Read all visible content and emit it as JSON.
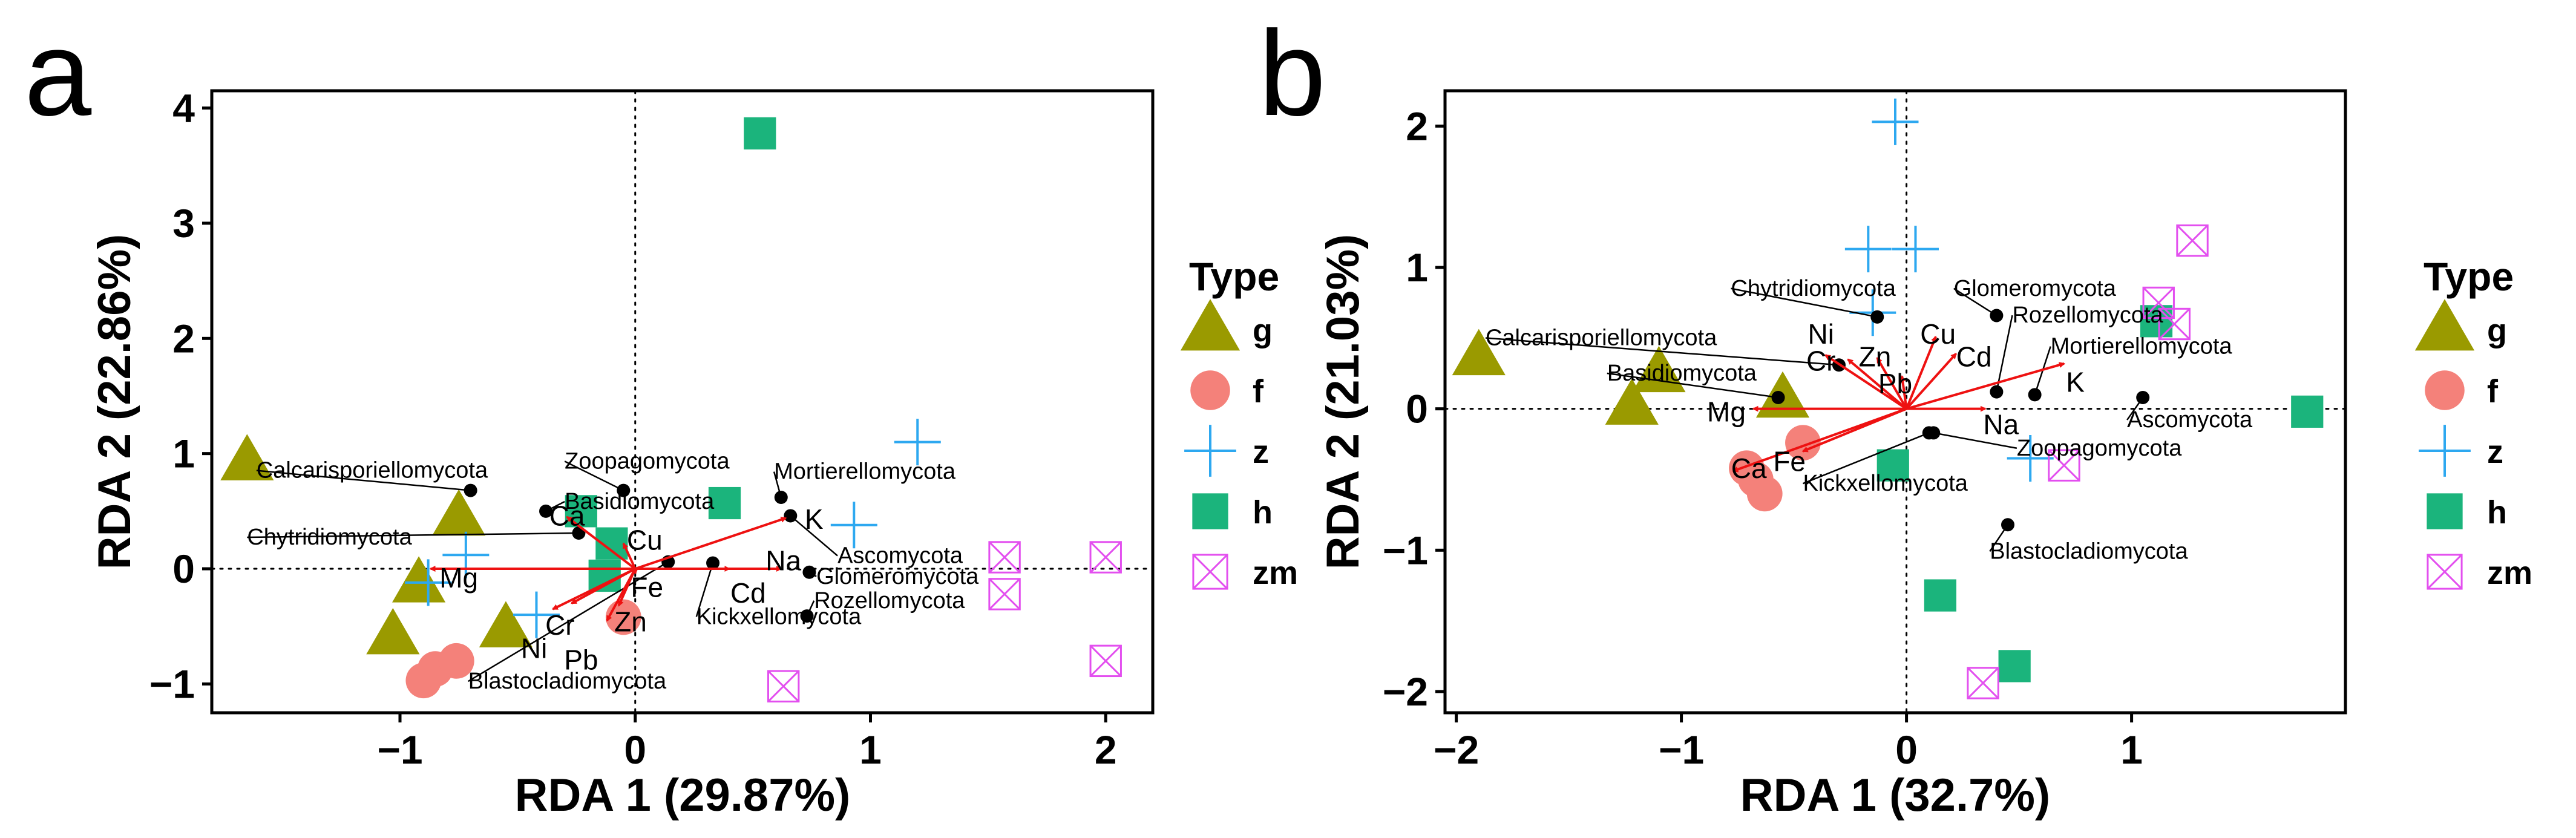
{
  "colors": {
    "g": "#9A9A00",
    "f": "#F4817A",
    "z": "#2DA8F0",
    "h": "#1BB47C",
    "zm": "#E34FEF",
    "arrow": "#EE1111",
    "species": "#000000"
  },
  "legend": {
    "title": "Type",
    "entries": [
      {
        "key": "g",
        "label": "g",
        "marker": "triangle-icon"
      },
      {
        "key": "f",
        "label": "f",
        "marker": "circle-icon"
      },
      {
        "key": "z",
        "label": "z",
        "marker": "plus-icon"
      },
      {
        "key": "h",
        "label": "h",
        "marker": "square-icon"
      },
      {
        "key": "zm",
        "label": "zm",
        "marker": "boxed-x-icon"
      }
    ]
  },
  "chart_data": [
    {
      "panel_label": "a",
      "type": "scatter",
      "title": "",
      "xlabel": "RDA 1 (29.87%)",
      "ylabel": "RDA 2 (22.86%)",
      "xlim": [
        -1.8,
        2.2
      ],
      "ylim": [
        -1.25,
        4.15
      ],
      "xticks": [
        -1,
        0,
        1,
        2
      ],
      "yticks": [
        -1,
        0,
        1,
        2,
        3,
        4
      ],
      "tick_labels_x": [
        "−1",
        "0",
        "1",
        "2"
      ],
      "tick_labels_y": [
        "−1",
        "0",
        "1",
        "2",
        "3",
        "4"
      ],
      "samples": [
        {
          "type": "g",
          "x": -1.65,
          "y": 0.93
        },
        {
          "type": "g",
          "x": -0.75,
          "y": 0.45
        },
        {
          "type": "g",
          "x": -0.92,
          "y": -0.13
        },
        {
          "type": "g",
          "x": -1.03,
          "y": -0.58
        },
        {
          "type": "g",
          "x": -0.55,
          "y": -0.52
        },
        {
          "type": "f",
          "x": -0.9,
          "y": -0.97
        },
        {
          "type": "f",
          "x": -0.85,
          "y": -0.87
        },
        {
          "type": "f",
          "x": -0.76,
          "y": -0.8
        },
        {
          "type": "f",
          "x": -0.05,
          "y": -0.42
        },
        {
          "type": "z",
          "x": -0.72,
          "y": 0.12
        },
        {
          "type": "z",
          "x": -0.88,
          "y": -0.12
        },
        {
          "type": "z",
          "x": -0.42,
          "y": -0.4
        },
        {
          "type": "z",
          "x": 1.2,
          "y": 1.1
        },
        {
          "type": "z",
          "x": 0.93,
          "y": 0.38
        },
        {
          "type": "h",
          "x": 0.53,
          "y": 3.78
        },
        {
          "type": "h",
          "x": -0.23,
          "y": 0.5
        },
        {
          "type": "h",
          "x": -0.1,
          "y": 0.22
        },
        {
          "type": "h",
          "x": -0.13,
          "y": -0.06
        },
        {
          "type": "h",
          "x": 0.38,
          "y": 0.57
        },
        {
          "type": "zm",
          "x": 1.57,
          "y": 0.1
        },
        {
          "type": "zm",
          "x": 1.57,
          "y": -0.22
        },
        {
          "type": "zm",
          "x": 2.0,
          "y": 0.1
        },
        {
          "type": "zm",
          "x": 2.0,
          "y": -0.8
        },
        {
          "type": "zm",
          "x": 0.63,
          "y": -1.02
        }
      ],
      "arrows": [
        {
          "label": "Ca",
          "x": -0.29,
          "y": 0.45,
          "lx": -0.29,
          "ly": 0.45
        },
        {
          "label": "Cu",
          "x": -0.05,
          "y": 0.22,
          "lx": 0.04,
          "ly": 0.24
        },
        {
          "label": "Mg",
          "x": -0.87,
          "y": 0.0,
          "lx": -0.75,
          "ly": -0.09
        },
        {
          "label": "Fe",
          "x": 0.0,
          "y": -0.04,
          "lx": 0.05,
          "ly": -0.17
        },
        {
          "label": "Cr",
          "x": -0.27,
          "y": -0.3,
          "lx": -0.32,
          "ly": -0.5
        },
        {
          "label": "Ni",
          "x": -0.35,
          "y": -0.35,
          "lx": -0.43,
          "ly": -0.7
        },
        {
          "label": "Zn",
          "x": -0.07,
          "y": -0.32,
          "lx": -0.02,
          "ly": -0.47
        },
        {
          "label": "Pb",
          "x": -0.12,
          "y": -0.45,
          "lx": -0.23,
          "ly": -0.8
        },
        {
          "label": "Cd",
          "x": 0.4,
          "y": 0.0,
          "lx": 0.48,
          "ly": -0.22
        },
        {
          "label": "Na",
          "x": 0.62,
          "y": 0.0,
          "lx": 0.63,
          "ly": 0.06
        },
        {
          "label": "K",
          "x": 0.64,
          "y": 0.44,
          "lx": 0.76,
          "ly": 0.42
        }
      ],
      "species": [
        {
          "name": "Calcarisporiellomycota",
          "x": -0.7,
          "y": 0.68,
          "lx": -1.61,
          "ly": 0.79,
          "anchor": "start"
        },
        {
          "name": "Zoopagomycota",
          "x": -0.05,
          "y": 0.68,
          "lx": -0.3,
          "ly": 0.87,
          "anchor": "start"
        },
        {
          "name": "Basidiomycota",
          "x": -0.38,
          "y": 0.5,
          "lx": -0.3,
          "ly": 0.52,
          "anchor": "start"
        },
        {
          "name": "Mortierellomycota",
          "x": 0.62,
          "y": 0.62,
          "lx": 0.59,
          "ly": 0.78,
          "anchor": "start"
        },
        {
          "name": "Chytridiomycota",
          "x": -0.24,
          "y": 0.31,
          "lx": -1.65,
          "ly": 0.21,
          "anchor": "start"
        },
        {
          "name": "Ascomycota",
          "x": 0.66,
          "y": 0.46,
          "lx": 0.86,
          "ly": 0.05,
          "anchor": "start"
        },
        {
          "name": "Glomeromycota",
          "x": 0.74,
          "y": -0.03,
          "lx": 0.77,
          "ly": -0.13,
          "anchor": "start"
        },
        {
          "name": "Rozellomycota",
          "x": 0.73,
          "y": -0.41,
          "lx": 0.76,
          "ly": -0.34,
          "anchor": "start"
        },
        {
          "name": "Kickxellomycota",
          "x": 0.33,
          "y": 0.05,
          "lx": 0.26,
          "ly": -0.48,
          "anchor": "start"
        },
        {
          "name": "Blastocladiomycota",
          "x": 0.14,
          "y": 0.06,
          "lx": -0.71,
          "ly": -1.04,
          "anchor": "start"
        }
      ]
    },
    {
      "panel_label": "b",
      "type": "scatter",
      "title": "",
      "xlabel": "RDA 1 (32.7%)",
      "ylabel": "RDA 2 (21.03%)",
      "xlim": [
        -2.05,
        1.95
      ],
      "ylim": [
        -2.15,
        2.25
      ],
      "xticks": [
        -2,
        -1,
        0,
        1
      ],
      "yticks": [
        -2,
        -1,
        0,
        1,
        2
      ],
      "tick_labels_x": [
        "−2",
        "−1",
        "0",
        "1"
      ],
      "tick_labels_y": [
        "−2",
        "−1",
        "0",
        "1",
        "2"
      ],
      "samples": [
        {
          "type": "g",
          "x": -1.9,
          "y": 0.37
        },
        {
          "type": "g",
          "x": -1.22,
          "y": 0.02
        },
        {
          "type": "g",
          "x": -1.1,
          "y": 0.25
        },
        {
          "type": "g",
          "x": -0.55,
          "y": 0.07
        },
        {
          "type": "f",
          "x": -0.71,
          "y": -0.42
        },
        {
          "type": "f",
          "x": -0.67,
          "y": -0.5
        },
        {
          "type": "f",
          "x": -0.63,
          "y": -0.6
        },
        {
          "type": "f",
          "x": -0.46,
          "y": -0.24
        },
        {
          "type": "z",
          "x": -0.05,
          "y": 2.03
        },
        {
          "type": "z",
          "x": -0.17,
          "y": 1.13
        },
        {
          "type": "z",
          "x": 0.04,
          "y": 1.13
        },
        {
          "type": "z",
          "x": -0.15,
          "y": 0.68
        },
        {
          "type": "z",
          "x": 0.55,
          "y": -0.35
        },
        {
          "type": "h",
          "x": 1.11,
          "y": 0.62
        },
        {
          "type": "h",
          "x": 1.78,
          "y": -0.02
        },
        {
          "type": "h",
          "x": 0.15,
          "y": -1.32
        },
        {
          "type": "h",
          "x": 0.48,
          "y": -1.82
        },
        {
          "type": "h",
          "x": -0.06,
          "y": -0.4
        },
        {
          "type": "zm",
          "x": 1.27,
          "y": 1.19
        },
        {
          "type": "zm",
          "x": 1.12,
          "y": 0.75
        },
        {
          "type": "zm",
          "x": 1.19,
          "y": 0.6
        },
        {
          "type": "zm",
          "x": 0.7,
          "y": -0.4
        },
        {
          "type": "zm",
          "x": 0.34,
          "y": -1.94
        }
      ],
      "arrows": [
        {
          "label": "Ni",
          "x": -0.36,
          "y": 0.38,
          "lx": -0.38,
          "ly": 0.52
        },
        {
          "label": "Cr",
          "x": -0.26,
          "y": 0.35,
          "lx": -0.38,
          "ly": 0.33
        },
        {
          "label": "Zn",
          "x": -0.13,
          "y": 0.36,
          "lx": -0.14,
          "ly": 0.36
        },
        {
          "label": "Pb",
          "x": -0.02,
          "y": 0.23,
          "lx": -0.05,
          "ly": 0.17
        },
        {
          "label": "Cu",
          "x": 0.13,
          "y": 0.51,
          "lx": 0.14,
          "ly": 0.52
        },
        {
          "label": "Cd",
          "x": 0.22,
          "y": 0.39,
          "lx": 0.3,
          "ly": 0.36
        },
        {
          "label": "K",
          "x": 0.7,
          "y": 0.32,
          "lx": 0.75,
          "ly": 0.18
        },
        {
          "label": "Na",
          "x": 0.35,
          "y": 0.0,
          "lx": 0.42,
          "ly": -0.12
        },
        {
          "label": "Mg",
          "x": -0.68,
          "y": 0.0,
          "lx": -0.8,
          "ly": -0.03
        },
        {
          "label": "Ca",
          "x": -0.77,
          "y": -0.44,
          "lx": -0.7,
          "ly": -0.43
        },
        {
          "label": "Fe",
          "x": -0.46,
          "y": -0.3,
          "lx": -0.52,
          "ly": -0.38
        }
      ],
      "species": [
        {
          "name": "Calcarisporiellomycota",
          "x": -0.3,
          "y": 0.31,
          "lx": -1.87,
          "ly": 0.45,
          "anchor": "start"
        },
        {
          "name": "Chytridiomycota",
          "x": -0.13,
          "y": 0.65,
          "lx": -0.78,
          "ly": 0.8,
          "anchor": "start"
        },
        {
          "name": "Basidiomycota",
          "x": -0.57,
          "y": 0.08,
          "lx": -1.33,
          "ly": 0.2,
          "anchor": "start"
        },
        {
          "name": "Glomeromycota",
          "x": 0.4,
          "y": 0.66,
          "lx": 0.21,
          "ly": 0.8,
          "anchor": "start"
        },
        {
          "name": "Rozellomycota",
          "x": 0.4,
          "y": 0.12,
          "lx": 0.47,
          "ly": 0.61,
          "anchor": "start"
        },
        {
          "name": "Mortierellomycota",
          "x": 0.57,
          "y": 0.1,
          "lx": 0.64,
          "ly": 0.39,
          "anchor": "start"
        },
        {
          "name": "Ascomycota",
          "x": 1.05,
          "y": 0.08,
          "lx": 0.98,
          "ly": -0.13,
          "anchor": "start"
        },
        {
          "name": "Zoopagomycota",
          "x": 0.12,
          "y": -0.17,
          "lx": 0.49,
          "ly": -0.33,
          "anchor": "start"
        },
        {
          "name": "Kickxellomycota",
          "x": 0.1,
          "y": -0.17,
          "lx": -0.46,
          "ly": -0.58,
          "anchor": "start"
        },
        {
          "name": "Blastocladiomycota",
          "x": 0.45,
          "y": -0.82,
          "lx": 0.37,
          "ly": -1.06,
          "anchor": "start"
        }
      ]
    }
  ]
}
